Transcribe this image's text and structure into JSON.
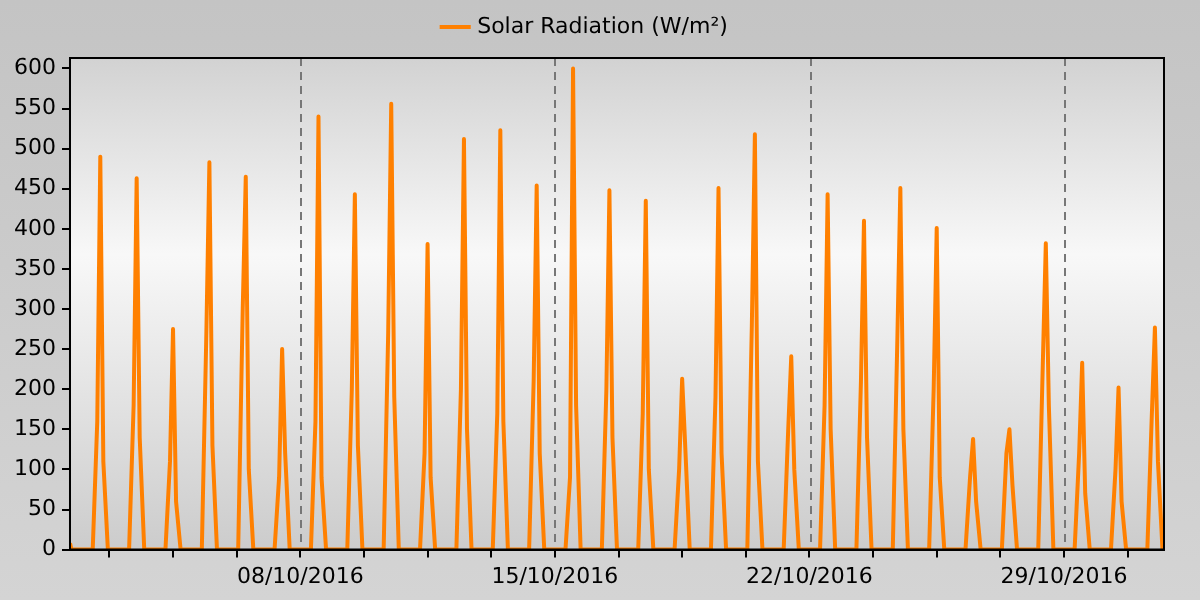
{
  "chart_data": {
    "type": "line",
    "legend": "top",
    "grid": "x",
    "marker": "none",
    "line_style": "solid",
    "x": [
      "2016-10-01T16:00",
      "2016-10-01T17:00",
      "2016-10-02T07:00",
      "2016-10-02T10:00",
      "2016-10-02T12:00",
      "2016-10-02T14:00",
      "2016-10-02T17:00",
      "2016-10-03T07:00",
      "2016-10-03T10:00",
      "2016-10-03T12:00",
      "2016-10-03T14:00",
      "2016-10-03T17:00",
      "2016-10-04T07:00",
      "2016-10-04T10:00",
      "2016-10-04T12:00",
      "2016-10-04T14:00",
      "2016-10-04T17:00",
      "2016-10-05T07:00",
      "2016-10-05T10:00",
      "2016-10-05T12:00",
      "2016-10-05T14:00",
      "2016-10-05T17:00",
      "2016-10-06T07:00",
      "2016-10-06T10:00",
      "2016-10-06T12:00",
      "2016-10-06T14:00",
      "2016-10-06T17:00",
      "2016-10-07T07:00",
      "2016-10-07T10:00",
      "2016-10-07T12:00",
      "2016-10-07T14:00",
      "2016-10-07T17:00",
      "2016-10-08T07:00",
      "2016-10-08T10:00",
      "2016-10-08T12:00",
      "2016-10-08T14:00",
      "2016-10-08T17:00",
      "2016-10-09T07:00",
      "2016-10-09T10:00",
      "2016-10-09T12:00",
      "2016-10-09T14:00",
      "2016-10-09T17:00",
      "2016-10-10T07:00",
      "2016-10-10T10:00",
      "2016-10-10T12:00",
      "2016-10-10T14:00",
      "2016-10-10T17:00",
      "2016-10-11T07:00",
      "2016-10-11T10:00",
      "2016-10-11T12:00",
      "2016-10-11T14:00",
      "2016-10-11T17:00",
      "2016-10-12T07:00",
      "2016-10-12T10:00",
      "2016-10-12T12:00",
      "2016-10-12T14:00",
      "2016-10-12T17:00",
      "2016-10-13T07:00",
      "2016-10-13T10:00",
      "2016-10-13T12:00",
      "2016-10-13T14:00",
      "2016-10-13T17:00",
      "2016-10-14T07:00",
      "2016-10-14T10:00",
      "2016-10-14T12:00",
      "2016-10-14T14:00",
      "2016-10-14T17:00",
      "2016-10-15T07:00",
      "2016-10-15T10:00",
      "2016-10-15T12:00",
      "2016-10-15T14:00",
      "2016-10-15T17:00",
      "2016-10-16T07:00",
      "2016-10-16T10:00",
      "2016-10-16T12:00",
      "2016-10-16T14:00",
      "2016-10-16T17:00",
      "2016-10-17T07:00",
      "2016-10-17T10:00",
      "2016-10-17T12:00",
      "2016-10-17T14:00",
      "2016-10-17T17:00",
      "2016-10-18T07:00",
      "2016-10-18T10:00",
      "2016-10-18T12:00",
      "2016-10-18T14:00",
      "2016-10-18T17:00",
      "2016-10-19T07:00",
      "2016-10-19T10:00",
      "2016-10-19T12:00",
      "2016-10-19T14:00",
      "2016-10-19T17:00",
      "2016-10-20T07:00",
      "2016-10-20T10:00",
      "2016-10-20T12:00",
      "2016-10-20T14:00",
      "2016-10-20T17:00",
      "2016-10-21T07:00",
      "2016-10-21T10:00",
      "2016-10-21T12:00",
      "2016-10-21T14:00",
      "2016-10-21T17:00",
      "2016-10-22T07:00",
      "2016-10-22T10:00",
      "2016-10-22T12:00",
      "2016-10-22T14:00",
      "2016-10-22T17:00",
      "2016-10-23T07:00",
      "2016-10-23T10:00",
      "2016-10-23T12:00",
      "2016-10-23T14:00",
      "2016-10-23T17:00",
      "2016-10-24T07:00",
      "2016-10-24T10:00",
      "2016-10-24T12:00",
      "2016-10-24T14:00",
      "2016-10-24T17:00",
      "2016-10-25T07:00",
      "2016-10-25T10:00",
      "2016-10-25T12:00",
      "2016-10-25T14:00",
      "2016-10-25T17:00",
      "2016-10-26T07:00",
      "2016-10-26T10:00",
      "2016-10-26T12:00",
      "2016-10-26T14:00",
      "2016-10-26T17:00",
      "2016-10-27T07:00",
      "2016-10-27T10:00",
      "2016-10-27T12:00",
      "2016-10-27T14:00",
      "2016-10-27T17:00",
      "2016-10-28T07:00",
      "2016-10-28T10:00",
      "2016-10-28T12:00",
      "2016-10-28T14:00",
      "2016-10-28T17:00",
      "2016-10-29T07:00",
      "2016-10-29T10:00",
      "2016-10-29T12:00",
      "2016-10-29T14:00",
      "2016-10-29T17:00",
      "2016-10-30T07:00",
      "2016-10-30T10:00",
      "2016-10-30T12:00",
      "2016-10-30T14:00",
      "2016-10-30T17:00",
      "2016-10-31T07:00",
      "2016-10-31T10:00",
      "2016-10-31T12:00",
      "2016-10-31T14:00",
      "2016-10-31T17:00"
    ],
    "series": [
      {
        "name": "Solar Radiation (W/m²)",
        "color": "#ff8000",
        "values": [
          8,
          0,
          0,
          160,
          490,
          110,
          0,
          0,
          180,
          463,
          140,
          0,
          0,
          110,
          275,
          60,
          0,
          0,
          270,
          483,
          130,
          0,
          0,
          300,
          465,
          100,
          0,
          0,
          90,
          250,
          120,
          0,
          0,
          160,
          540,
          90,
          0,
          0,
          200,
          443,
          130,
          0,
          0,
          270,
          556,
          190,
          0,
          0,
          120,
          381,
          90,
          0,
          0,
          200,
          512,
          150,
          0,
          0,
          170,
          523,
          160,
          0,
          0,
          210,
          454,
          120,
          0,
          0,
          90,
          600,
          180,
          0,
          0,
          200,
          448,
          140,
          0,
          0,
          170,
          435,
          100,
          0,
          0,
          100,
          213,
          130,
          0,
          0,
          190,
          451,
          120,
          0,
          0,
          280,
          518,
          110,
          0,
          0,
          150,
          241,
          100,
          0,
          0,
          180,
          443,
          150,
          0,
          0,
          210,
          410,
          140,
          0,
          0,
          260,
          451,
          150,
          0,
          0,
          200,
          401,
          90,
          0,
          0,
          90,
          138,
          60,
          0,
          0,
          120,
          150,
          80,
          0,
          0,
          230,
          382,
          180,
          0,
          0,
          120,
          233,
          70,
          0,
          0,
          100,
          202,
          60,
          0,
          0,
          170,
          277,
          110,
          0
        ]
      }
    ],
    "xlim": [
      "2016-10-01T16:00",
      "2016-10-31T18:00"
    ],
    "xticks": [
      {
        "value": "2016-10-02T18:00",
        "label": null
      },
      {
        "value": "2016-10-04T12:00",
        "label": null
      },
      {
        "value": "2016-10-06T06:00",
        "label": null
      },
      {
        "value": "2016-10-08",
        "label": "08/10/2016"
      },
      {
        "value": "2016-10-09T18:00",
        "label": null
      },
      {
        "value": "2016-10-11T12:00",
        "label": null
      },
      {
        "value": "2016-10-13T06:00",
        "label": null
      },
      {
        "value": "2016-10-15",
        "label": "15/10/2016"
      },
      {
        "value": "2016-10-16T18:00",
        "label": null
      },
      {
        "value": "2016-10-18T12:00",
        "label": null
      },
      {
        "value": "2016-10-20T06:00",
        "label": null
      },
      {
        "value": "2016-10-22",
        "label": "22/10/2016"
      },
      {
        "value": "2016-10-23T18:00",
        "label": null
      },
      {
        "value": "2016-10-25T12:00",
        "label": null
      },
      {
        "value": "2016-10-27T06:00",
        "label": null
      },
      {
        "value": "2016-10-29",
        "label": "29/10/2016"
      },
      {
        "value": "2016-10-30T18:00",
        "label": null
      }
    ],
    "ylim": [
      0,
      613
    ],
    "yticks": [
      0,
      50,
      100,
      150,
      200,
      250,
      300,
      350,
      400,
      450,
      500,
      550,
      600
    ]
  }
}
